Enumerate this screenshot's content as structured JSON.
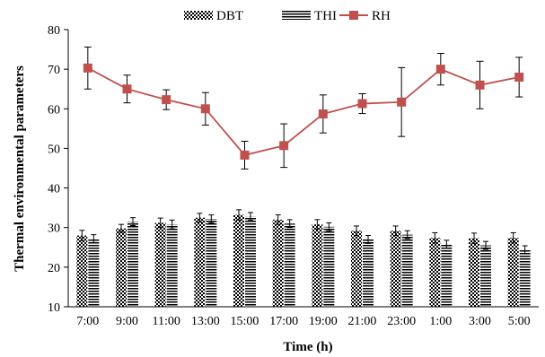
{
  "chart_data": {
    "type": "bar",
    "xlabel": "Time (h)",
    "ylabel": "Thermal environmental parameters",
    "ylim": [
      10,
      80
    ],
    "yticks": [
      10,
      20,
      30,
      40,
      50,
      60,
      70,
      80
    ],
    "grid": false,
    "legend_position": "top",
    "categories": [
      "7:00",
      "9:00",
      "11:00",
      "13:00",
      "15:00",
      "17:00",
      "19:00",
      "21:00",
      "23:00",
      "1:00",
      "3:00",
      "5:00"
    ],
    "series": [
      {
        "name": "DBT",
        "kind": "bar",
        "pattern": "checker",
        "values": [
          28.0,
          29.8,
          31.2,
          32.5,
          33.2,
          32.0,
          30.8,
          29.2,
          29.2,
          27.4,
          27.3,
          27.4
        ],
        "errors": [
          1.3,
          1.0,
          1.2,
          1.1,
          1.3,
          1.2,
          1.2,
          1.2,
          1.2,
          1.3,
          1.3,
          1.3
        ]
      },
      {
        "name": "THI",
        "kind": "bar",
        "pattern": "horizontal-lines",
        "values": [
          27.2,
          31.5,
          30.8,
          32.2,
          32.8,
          31.0,
          30.2,
          27.0,
          28.2,
          25.8,
          25.5,
          24.4
        ],
        "errors": [
          1.0,
          1.0,
          1.1,
          1.0,
          1.0,
          1.0,
          1.0,
          1.0,
          1.0,
          1.0,
          1.0,
          1.0
        ]
      },
      {
        "name": "RH",
        "kind": "line",
        "color": "#c0504d",
        "values": [
          70.3,
          65.0,
          62.3,
          60.0,
          48.3,
          50.7,
          58.7,
          61.3,
          61.7,
          70.0,
          66.0,
          68.0
        ],
        "errors": [
          5.3,
          3.5,
          2.5,
          4.1,
          3.5,
          5.5,
          4.8,
          2.5,
          8.7,
          4.0,
          6.0,
          5.0
        ]
      }
    ]
  }
}
